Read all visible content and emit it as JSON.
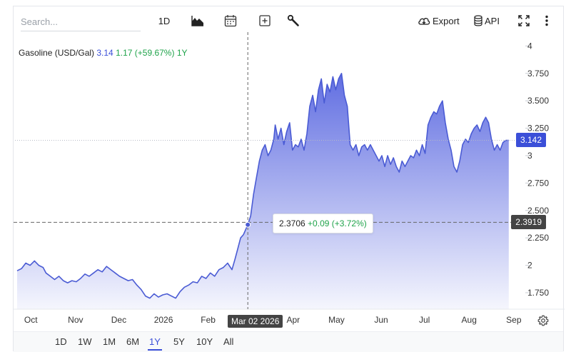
{
  "toolbar": {
    "search_placeholder": "Search...",
    "interval_label": "1D",
    "chart_type_icon": "mountain-chart-icon",
    "calendar_icon": "calendar-icon",
    "compare_icon": "plus-square-icon",
    "tools_icon": "wrench-icon",
    "export_label": "Export",
    "api_label": "API",
    "fullscreen_icon": "fullscreen-icon",
    "more_icon": "more-vertical-icon"
  },
  "legend": {
    "name": "Gasoline (USD/Gal)",
    "price": "3.14",
    "change": "1.17 (+59.67%)",
    "period": "1Y"
  },
  "crosshair": {
    "date_label": "Mar 02 2026",
    "price_label": "2.3919",
    "tooltip_value": "2.3706",
    "tooltip_change": "+0.09 (+3.72%)"
  },
  "last_price_label": "3.142",
  "ranges": [
    "1D",
    "1W",
    "1M",
    "6M",
    "1Y",
    "5Y",
    "10Y",
    "All"
  ],
  "active_range": "1Y",
  "colors": {
    "line": "#4a5bd4",
    "fill_top": "#5866e0",
    "crosshair_label": "#444444",
    "last_price": "#3b4fd8",
    "positive": "#1fa34a"
  },
  "chart_data": {
    "type": "area",
    "ylim": [
      1.6,
      4.1
    ],
    "yticks": [
      "4",
      "3.750",
      "3.500",
      "3.250",
      "3",
      "2.750",
      "2.500",
      "2.250",
      "2",
      "1.750"
    ],
    "ytick_values": [
      4,
      3.75,
      3.5,
      3.25,
      3,
      2.75,
      2.5,
      2.25,
      2,
      1.75
    ],
    "xticks": [
      {
        "label": "Oct",
        "t": 9.5
      },
      {
        "label": "Nov",
        "t": 40.5
      },
      {
        "label": "Dec",
        "t": 70.5
      },
      {
        "label": "2026",
        "t": 101.5
      },
      {
        "label": "Feb",
        "t": 132.5
      },
      {
        "label": "Apr",
        "t": 191.5
      },
      {
        "label": "May",
        "t": 221.5
      },
      {
        "label": "Jun",
        "t": 252.5
      },
      {
        "label": "Jul",
        "t": 282.5
      },
      {
        "label": "Aug",
        "t": 313.5
      },
      {
        "label": "Sep",
        "t": 344.5
      }
    ],
    "crosshair_t": 160,
    "crosshair_value": 2.3919,
    "series": [
      {
        "values": [
          [
            0,
            1.95
          ],
          [
            3,
            1.97
          ],
          [
            6,
            2.02
          ],
          [
            9,
            2.0
          ],
          [
            12,
            2.04
          ],
          [
            15,
            2.0
          ],
          [
            18,
            1.98
          ],
          [
            20,
            1.93
          ],
          [
            23,
            1.9
          ],
          [
            26,
            1.87
          ],
          [
            29,
            1.9
          ],
          [
            32,
            1.86
          ],
          [
            35,
            1.84
          ],
          [
            38,
            1.86
          ],
          [
            41,
            1.85
          ],
          [
            44,
            1.88
          ],
          [
            47,
            1.92
          ],
          [
            50,
            1.9
          ],
          [
            53,
            1.93
          ],
          [
            56,
            1.96
          ],
          [
            59,
            1.94
          ],
          [
            62,
            1.99
          ],
          [
            65,
            1.96
          ],
          [
            68,
            1.93
          ],
          [
            71,
            1.9
          ],
          [
            74,
            1.88
          ],
          [
            77,
            1.86
          ],
          [
            80,
            1.87
          ],
          [
            83,
            1.82
          ],
          [
            86,
            1.78
          ],
          [
            89,
            1.72
          ],
          [
            92,
            1.7
          ],
          [
            95,
            1.74
          ],
          [
            98,
            1.71
          ],
          [
            101,
            1.73
          ],
          [
            104,
            1.74
          ],
          [
            107,
            1.72
          ],
          [
            110,
            1.7
          ],
          [
            113,
            1.76
          ],
          [
            116,
            1.8
          ],
          [
            119,
            1.82
          ],
          [
            122,
            1.85
          ],
          [
            125,
            1.84
          ],
          [
            128,
            1.9
          ],
          [
            131,
            1.88
          ],
          [
            134,
            1.93
          ],
          [
            137,
            1.9
          ],
          [
            140,
            1.96
          ],
          [
            143,
            1.98
          ],
          [
            146,
            2.02
          ],
          [
            149,
            1.96
          ],
          [
            151,
            2.05
          ],
          [
            153,
            2.15
          ],
          [
            155,
            2.25
          ],
          [
            157,
            2.28
          ],
          [
            160,
            2.37
          ],
          [
            162,
            2.45
          ],
          [
            164,
            2.65
          ],
          [
            166,
            2.8
          ],
          [
            168,
            2.95
          ],
          [
            170,
            3.05
          ],
          [
            172,
            3.1
          ],
          [
            174,
            3.0
          ],
          [
            176,
            3.05
          ],
          [
            178,
            3.15
          ],
          [
            179,
            3.28
          ],
          [
            181,
            3.15
          ],
          [
            183,
            3.25
          ],
          [
            185,
            3.1
          ],
          [
            187,
            3.22
          ],
          [
            189,
            3.3
          ],
          [
            191,
            3.05
          ],
          [
            193,
            3.1
          ],
          [
            195,
            3.08
          ],
          [
            197,
            3.15
          ],
          [
            199,
            3.05
          ],
          [
            201,
            3.2
          ],
          [
            203,
            3.45
          ],
          [
            205,
            3.55
          ],
          [
            207,
            3.4
          ],
          [
            209,
            3.6
          ],
          [
            211,
            3.7
          ],
          [
            213,
            3.48
          ],
          [
            215,
            3.65
          ],
          [
            217,
            3.58
          ],
          [
            219,
            3.72
          ],
          [
            221,
            3.6
          ],
          [
            223,
            3.7
          ],
          [
            225,
            3.75
          ],
          [
            227,
            3.55
          ],
          [
            229,
            3.45
          ],
          [
            231,
            3.1
          ],
          [
            233,
            3.05
          ],
          [
            235,
            3.1
          ],
          [
            237,
            3.0
          ],
          [
            239,
            3.08
          ],
          [
            241,
            3.1
          ],
          [
            243,
            3.05
          ],
          [
            245,
            3.1
          ],
          [
            247,
            3.05
          ],
          [
            249,
            3.0
          ],
          [
            251,
            2.95
          ],
          [
            253,
            3.0
          ],
          [
            255,
            2.9
          ],
          [
            257,
            3.0
          ],
          [
            259,
            2.92
          ],
          [
            261,
            2.98
          ],
          [
            263,
            2.9
          ],
          [
            265,
            2.85
          ],
          [
            267,
            2.95
          ],
          [
            269,
            2.9
          ],
          [
            271,
            2.95
          ],
          [
            273,
            3.0
          ],
          [
            275,
            2.98
          ],
          [
            277,
            3.05
          ],
          [
            279,
            3.0
          ],
          [
            281,
            3.1
          ],
          [
            283,
            3.02
          ],
          [
            285,
            3.28
          ],
          [
            287,
            3.35
          ],
          [
            289,
            3.4
          ],
          [
            291,
            3.38
          ],
          [
            293,
            3.45
          ],
          [
            295,
            3.5
          ],
          [
            297,
            3.3
          ],
          [
            299,
            3.15
          ],
          [
            301,
            3.05
          ],
          [
            303,
            2.9
          ],
          [
            305,
            2.85
          ],
          [
            307,
            2.95
          ],
          [
            309,
            3.1
          ],
          [
            311,
            3.15
          ],
          [
            313,
            3.12
          ],
          [
            315,
            3.2
          ],
          [
            317,
            3.25
          ],
          [
            319,
            3.28
          ],
          [
            321,
            3.22
          ],
          [
            323,
            3.3
          ],
          [
            325,
            3.35
          ],
          [
            327,
            3.3
          ],
          [
            329,
            3.15
          ],
          [
            331,
            3.05
          ],
          [
            333,
            3.1
          ],
          [
            335,
            3.05
          ],
          [
            337,
            3.12
          ],
          [
            339,
            3.14
          ],
          [
            341,
            3.14
          ]
        ]
      }
    ]
  }
}
